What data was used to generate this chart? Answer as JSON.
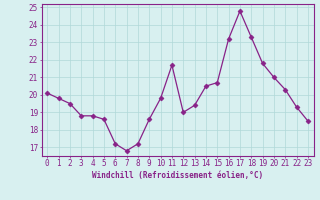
{
  "x": [
    0,
    1,
    2,
    3,
    4,
    5,
    6,
    7,
    8,
    9,
    10,
    11,
    12,
    13,
    14,
    15,
    16,
    17,
    18,
    19,
    20,
    21,
    22,
    23
  ],
  "y": [
    20.1,
    19.8,
    19.5,
    18.8,
    18.8,
    18.6,
    17.2,
    16.8,
    17.2,
    18.6,
    19.8,
    21.7,
    19.0,
    19.4,
    20.5,
    20.7,
    23.2,
    24.8,
    23.3,
    21.8,
    21.0,
    20.3,
    19.3,
    18.5
  ],
  "line_color": "#882288",
  "marker": "D",
  "markersize": 2.5,
  "linewidth": 0.9,
  "bg_color": "#d8f0f0",
  "grid_color": "#b0d8d8",
  "xlabel": "Windchill (Refroidissement éolien,°C)",
  "xlabel_fontsize": 5.5,
  "tick_fontsize": 5.5,
  "ylim": [
    16.5,
    25.2
  ],
  "yticks": [
    17,
    18,
    19,
    20,
    21,
    22,
    23,
    24,
    25
  ],
  "xticks": [
    0,
    1,
    2,
    3,
    4,
    5,
    6,
    7,
    8,
    9,
    10,
    11,
    12,
    13,
    14,
    15,
    16,
    17,
    18,
    19,
    20,
    21,
    22,
    23
  ]
}
